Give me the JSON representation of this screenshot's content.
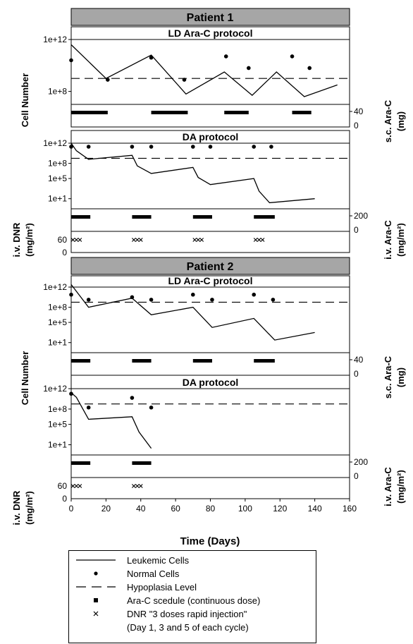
{
  "chart_data": {
    "type": "line",
    "x_label": "Time (Days)",
    "x_ticks": [
      0,
      20,
      40,
      60,
      80,
      100,
      120,
      140,
      160
    ],
    "xlim": [
      0,
      160
    ],
    "cell_axis_label": "Cell Number",
    "cell_ticks_p1_ld": [
      "1e+12",
      "1e+8"
    ],
    "cell_ticks_full": [
      "1e+12",
      "1e+8",
      "1e+5",
      "1e+1"
    ],
    "sc_label_line1": "s.c. Ara-C",
    "sc_label_line2": "(mg)",
    "sc_ticks": [
      "40",
      "0"
    ],
    "iv_arac_label_line1": "i.v. Ara-C",
    "iv_arac_label_line2": "(mg/m²)",
    "iv_arac_ticks": [
      "200",
      "0"
    ],
    "dnr_label_line1": "i.v. DNR",
    "dnr_label_line2": "(mg/m²)",
    "dnr_ticks": [
      "60",
      "0"
    ],
    "hypoplasia_level_log10": 9,
    "patients": [
      {
        "title": "Patient 1",
        "panels": [
          {
            "protocol": "LD Ara-C protocol",
            "ylim_log10": [
              7,
              12
            ],
            "leukemic": [
              [
                0,
                11.6
              ],
              [
                20,
                9
              ],
              [
                46,
                10.8
              ],
              [
                66,
                7.8
              ],
              [
                88,
                9.5
              ],
              [
                104,
                7.7
              ],
              [
                118,
                9.5
              ],
              [
                134,
                7.6
              ],
              [
                153,
                8.5
              ]
            ],
            "normal": [
              [
                0,
                10.4
              ],
              [
                21,
                8.9
              ],
              [
                46,
                10.6
              ],
              [
                65,
                8.9
              ],
              [
                89,
                10.7
              ],
              [
                102,
                9.8
              ],
              [
                127,
                10.7
              ],
              [
                137,
                9.8
              ]
            ],
            "arac_schedule": [
              [
                0,
                21
              ],
              [
                46,
                67
              ],
              [
                88,
                102
              ],
              [
                127,
                138
              ]
            ],
            "dnr_days": []
          },
          {
            "protocol": "DA protocol",
            "ylim_log10": [
              -1,
              12
            ],
            "leukemic": [
              [
                0,
                12
              ],
              [
                3,
                10.5
              ],
              [
                10,
                8.8
              ],
              [
                35,
                9.6
              ],
              [
                38,
                7.5
              ],
              [
                46,
                6
              ],
              [
                70,
                7.2
              ],
              [
                73,
                5.2
              ],
              [
                80,
                3.8
              ],
              [
                105,
                5
              ],
              [
                108,
                2.5
              ],
              [
                114,
                0.2
              ],
              [
                140,
                1
              ]
            ],
            "normal": [
              [
                0,
                11.3
              ],
              [
                10,
                11.3
              ],
              [
                35,
                11.3
              ],
              [
                46,
                11.3
              ],
              [
                70,
                11.3
              ],
              [
                80,
                11.3
              ],
              [
                105,
                11.3
              ],
              [
                115,
                11.3
              ]
            ],
            "arac_schedule": [
              [
                0,
                11
              ],
              [
                35,
                46
              ],
              [
                70,
                81
              ],
              [
                105,
                117
              ]
            ],
            "dnr_days": [
              1,
              3,
              5,
              36,
              38,
              40,
              71,
              73,
              75,
              106,
              108,
              110
            ]
          }
        ]
      },
      {
        "title": "Patient 2",
        "panels": [
          {
            "protocol": "LD Ara-C protocol",
            "ylim_log10": [
              -1,
              12
            ],
            "leukemic": [
              [
                0,
                12.5
              ],
              [
                10,
                8
              ],
              [
                35,
                9.8
              ],
              [
                46,
                6.5
              ],
              [
                70,
                8
              ],
              [
                81,
                4
              ],
              [
                105,
                5.8
              ],
              [
                117,
                1.5
              ],
              [
                140,
                3
              ]
            ],
            "normal": [
              [
                0,
                10.5
              ],
              [
                10,
                9.5
              ],
              [
                35,
                10
              ],
              [
                46,
                9.5
              ],
              [
                70,
                10.5
              ],
              [
                81,
                9.5
              ],
              [
                105,
                10.5
              ],
              [
                116,
                9.5
              ]
            ],
            "arac_schedule": [
              [
                0,
                11
              ],
              [
                35,
                46
              ],
              [
                70,
                81
              ],
              [
                105,
                117
              ]
            ],
            "dnr_days": []
          },
          {
            "protocol": "DA protocol",
            "ylim_log10": [
              -1,
              12
            ],
            "leukemic": [
              [
                0,
                11.2
              ],
              [
                3,
                10.3
              ],
              [
                10,
                6
              ],
              [
                35,
                6.5
              ],
              [
                39,
                3.5
              ],
              [
                46,
                0.3
              ]
            ],
            "normal": [
              [
                0,
                11
              ],
              [
                10,
                8.3
              ],
              [
                35,
                10.2
              ],
              [
                46,
                8.3
              ]
            ],
            "arac_schedule": [
              [
                0,
                11
              ],
              [
                35,
                46
              ]
            ],
            "dnr_days": [
              1,
              3,
              5,
              36,
              38,
              40
            ]
          }
        ]
      }
    ],
    "legend": [
      {
        "symbol": "line",
        "label": "Leukemic Cells"
      },
      {
        "symbol": "dot",
        "label": "Normal Cells"
      },
      {
        "symbol": "dash",
        "label": "Hypoplasia Level"
      },
      {
        "symbol": "square",
        "label": "Ara-C scedule (continuous dose)"
      },
      {
        "symbol": "cross",
        "label": "DNR \"3 doses rapid injection\""
      },
      {
        "symbol": "none",
        "label": "(Day 1, 3 and 5 of each cycle)"
      }
    ]
  }
}
